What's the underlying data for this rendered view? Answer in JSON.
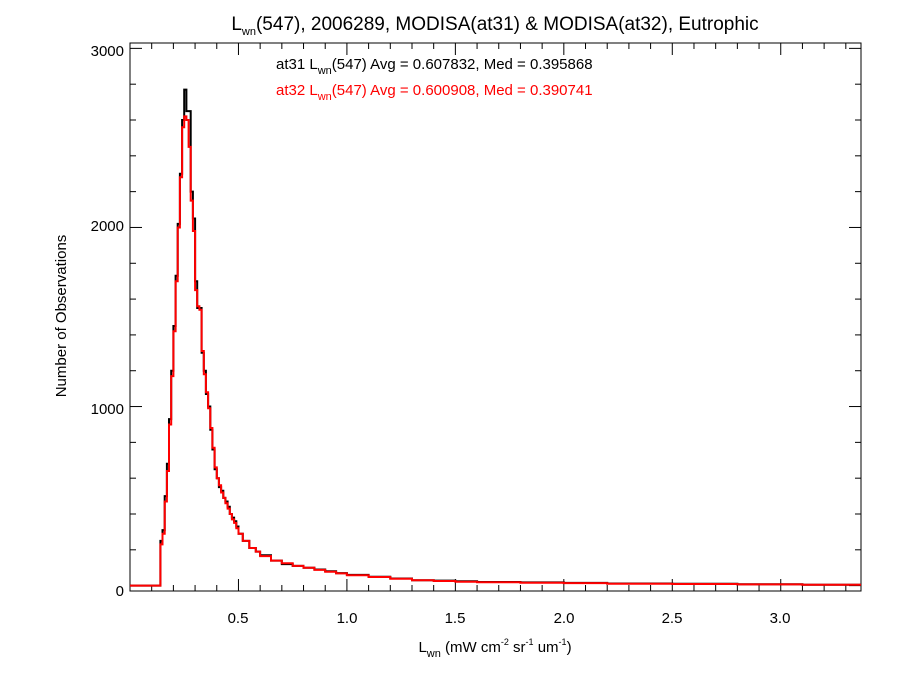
{
  "chart_data": {
    "type": "line",
    "title": {
      "prefix": "L",
      "sub": "wn",
      "rest": "(547), 2006289, MODISA(at31) & MODISA(at32), Eutrophic"
    },
    "xlabel": {
      "prefix": "L",
      "sub": "wn",
      "p1": " (mW cm",
      "sup1": "-2",
      "p2": " sr",
      "sup2": "-1",
      "p3": " um",
      "sup3": "-1",
      "p4": ")"
    },
    "ylabel": "Number of Observations",
    "xlim": [
      0.0,
      3.37
    ],
    "ylim": [
      -30,
      3030
    ],
    "x_ticks": [
      0.5,
      1.0,
      1.5,
      2.0,
      2.5,
      3.0
    ],
    "x_tick_labels": [
      "0.5",
      "1.0",
      "1.5",
      "2.0",
      "2.5",
      "3.0"
    ],
    "y_ticks": [
      0,
      1000,
      2000,
      3000
    ],
    "y_tick_labels": [
      "0",
      "1000",
      "2000",
      "3000"
    ],
    "annotations": [
      {
        "a": "at31 L",
        "sub": "wn",
        "b": "(547) Avg = 0.607832, Med = 0.395868",
        "color": "#000000"
      },
      {
        "a": "at32 L",
        "sub": "wn",
        "b": "(547) Avg = 0.600908, Med = 0.390741",
        "color": "#ff0000"
      }
    ],
    "series": [
      {
        "color": "#000000",
        "x": [
          0.0,
          0.13,
          0.14,
          0.15,
          0.16,
          0.17,
          0.18,
          0.19,
          0.2,
          0.21,
          0.22,
          0.23,
          0.24,
          0.25,
          0.26,
          0.27,
          0.28,
          0.29,
          0.3,
          0.31,
          0.32,
          0.33,
          0.34,
          0.35,
          0.36,
          0.37,
          0.38,
          0.39,
          0.4,
          0.41,
          0.42,
          0.43,
          0.44,
          0.45,
          0.46,
          0.47,
          0.48,
          0.49,
          0.5,
          0.52,
          0.55,
          0.58,
          0.6,
          0.65,
          0.7,
          0.75,
          0.8,
          0.85,
          0.9,
          0.95,
          1.0,
          1.1,
          1.2,
          1.3,
          1.4,
          1.5,
          1.6,
          1.8,
          2.0,
          2.2,
          2.5,
          2.8,
          3.1,
          3.37
        ],
        "y": [
          0,
          0,
          250,
          310,
          500,
          680,
          930,
          1200,
          1450,
          1730,
          2020,
          2300,
          2600,
          2770,
          2650,
          2650,
          2200,
          2050,
          1700,
          1550,
          1550,
          1300,
          1200,
          1070,
          1000,
          870,
          760,
          650,
          600,
          550,
          530,
          490,
          470,
          440,
          400,
          380,
          360,
          330,
          290,
          250,
          210,
          190,
          170,
          140,
          120,
          110,
          100,
          90,
          80,
          70,
          60,
          50,
          40,
          30,
          28,
          25,
          20,
          18,
          15,
          12,
          10,
          8,
          5,
          5
        ]
      },
      {
        "color": "#ff0000",
        "x": [
          0.0,
          0.13,
          0.14,
          0.15,
          0.16,
          0.17,
          0.18,
          0.19,
          0.2,
          0.21,
          0.22,
          0.23,
          0.24,
          0.25,
          0.26,
          0.27,
          0.28,
          0.29,
          0.3,
          0.31,
          0.32,
          0.33,
          0.34,
          0.35,
          0.36,
          0.37,
          0.38,
          0.39,
          0.4,
          0.41,
          0.42,
          0.43,
          0.44,
          0.45,
          0.46,
          0.47,
          0.48,
          0.49,
          0.5,
          0.52,
          0.55,
          0.58,
          0.6,
          0.65,
          0.7,
          0.75,
          0.8,
          0.85,
          0.9,
          0.95,
          1.0,
          1.1,
          1.2,
          1.3,
          1.4,
          1.5,
          1.6,
          1.8,
          2.0,
          2.2,
          2.5,
          2.8,
          3.1,
          3.37
        ],
        "y": [
          0,
          0,
          230,
          290,
          470,
          640,
          900,
          1170,
          1420,
          1700,
          2000,
          2280,
          2560,
          2620,
          2600,
          2450,
          2150,
          1980,
          1650,
          1560,
          1540,
          1310,
          1180,
          1080,
          990,
          880,
          770,
          660,
          600,
          560,
          520,
          490,
          460,
          430,
          400,
          370,
          350,
          320,
          290,
          250,
          210,
          190,
          165,
          140,
          125,
          110,
          100,
          88,
          78,
          68,
          58,
          48,
          38,
          30,
          26,
          22,
          19,
          16,
          14,
          11,
          9,
          7,
          5,
          5
        ]
      }
    ]
  }
}
